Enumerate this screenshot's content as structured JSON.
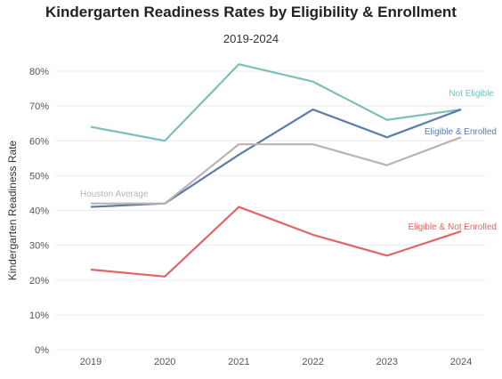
{
  "chart_data": {
    "type": "line",
    "title": "Kindergarten Readiness Rates by Eligibility & Enrollment",
    "subtitle": "2019-2024",
    "xlabel": "",
    "ylabel": "Kindergarten Readiness Rate",
    "categories": [
      "2019",
      "2020",
      "2021",
      "2022",
      "2023",
      "2024"
    ],
    "ylim": [
      0,
      85
    ],
    "yticks": [
      "0%",
      "10%",
      "20%",
      "30%",
      "40%",
      "50%",
      "60%",
      "70%",
      "80%"
    ],
    "ytick_values": [
      0,
      10,
      20,
      30,
      40,
      50,
      60,
      70,
      80
    ],
    "grid": true,
    "legend": "inline labels",
    "series": [
      {
        "name": "Not Eligible",
        "color": "#7cbfba",
        "values": [
          64,
          60,
          82,
          77,
          66,
          69
        ]
      },
      {
        "name": "Eligible & Enrolled",
        "color": "#5b7ea9",
        "values": [
          41,
          42,
          56,
          69,
          61,
          69
        ]
      },
      {
        "name": "Houston Average",
        "color": "#bcb2b4",
        "values": [
          42,
          42,
          59,
          59,
          53,
          61
        ]
      },
      {
        "name": "Eligible & Not Enrolled",
        "color": "#e06666",
        "values": [
          23,
          21,
          41,
          33,
          27,
          34
        ]
      }
    ]
  }
}
